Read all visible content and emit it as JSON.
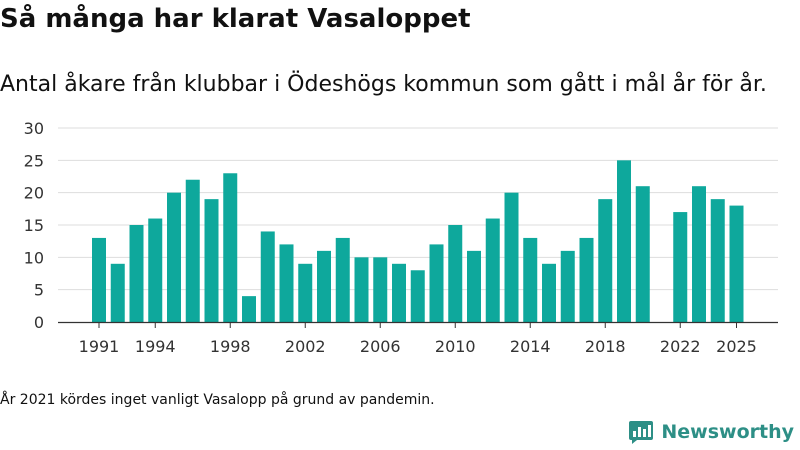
{
  "title": "Så många har klarat Vasaloppet",
  "subtitle": "Antal åkare från klubbar i Ödeshögs kommun som gått i mål år för år.",
  "footnote": "År 2021 kördes inget vanligt Vasalopp på grund av pandemin.",
  "brand": {
    "name": "Newsworthy",
    "icon": "newsworthy-logo-icon",
    "color": "#2d8f86"
  },
  "chart_data": {
    "type": "bar",
    "title": "Så många har klarat Vasaloppet",
    "xlabel": "",
    "ylabel": "",
    "ylim": [
      0,
      30
    ],
    "yticks": [
      0,
      5,
      10,
      15,
      20,
      25,
      30
    ],
    "xticks": [
      "1991",
      "1994",
      "1998",
      "2002",
      "2006",
      "2010",
      "2014",
      "2018",
      "2022",
      "2025"
    ],
    "grid": true,
    "bar_color": "#0ea89c",
    "categories": [
      1991,
      1992,
      1993,
      1994,
      1995,
      1996,
      1997,
      1998,
      1999,
      2000,
      2001,
      2002,
      2003,
      2004,
      2005,
      2006,
      2007,
      2008,
      2009,
      2010,
      2011,
      2012,
      2013,
      2014,
      2015,
      2016,
      2017,
      2018,
      2019,
      2020,
      2021,
      2022,
      2023,
      2024,
      2025
    ],
    "values": [
      13,
      9,
      15,
      16,
      20,
      22,
      19,
      23,
      4,
      14,
      12,
      9,
      11,
      13,
      10,
      10,
      9,
      8,
      12,
      15,
      11,
      16,
      20,
      13,
      9,
      11,
      13,
      19,
      25,
      21,
      null,
      17,
      21,
      19,
      18
    ]
  }
}
